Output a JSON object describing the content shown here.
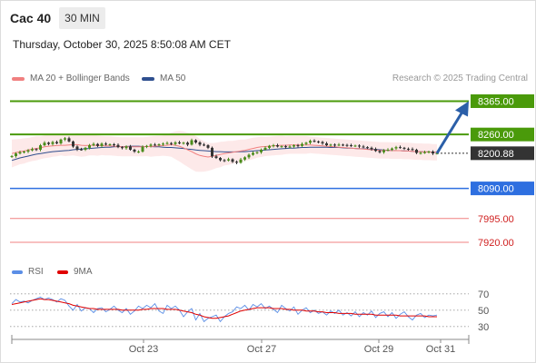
{
  "header": {
    "instrument": "Cac 40",
    "timeframe": "30 MIN",
    "datetime": "Thursday, October 30, 2025 8:50:08 AM CET"
  },
  "legend": {
    "ma20": "MA 20 + Bollinger Bands",
    "ma50": "MA 50",
    "credit": "Research © 2025 Trading Central",
    "colors": {
      "ma20": "#f08080",
      "ma50": "#2f4f8f"
    }
  },
  "rsi_legend": {
    "rsi": "RSI",
    "ma9": "9MA",
    "colors": {
      "rsi": "#5b8ee6",
      "ma9": "#e00000"
    }
  },
  "chart_data": [
    {
      "type": "candlestick",
      "title": "",
      "ylim": [
        7880,
        8395
      ],
      "x_ticks": [
        "Oct 23",
        "Oct 27",
        "Oct 29",
        "Oct 31"
      ],
      "last_price": 8200.88,
      "levels": [
        {
          "label": "8365.00",
          "value": 8365,
          "color": "#4a9a0a",
          "style": "solid-thick"
        },
        {
          "label": "8260.00",
          "value": 8260,
          "color": "#4a9a0a",
          "style": "solid-thick"
        },
        {
          "label": "8200.88",
          "value": 8200.88,
          "color": "#333333",
          "style": "dotted"
        },
        {
          "label": "8090.00",
          "value": 8090,
          "color": "#2e6fe0",
          "style": "solid"
        },
        {
          "label": "7995.00",
          "value": 7995,
          "color": "#f08080",
          "style": "solid-thin"
        },
        {
          "label": "7920.00",
          "value": 7920,
          "color": "#f08080",
          "style": "solid-thin"
        }
      ],
      "close": [
        8192,
        8200,
        8204,
        8206,
        8210,
        8214,
        8212,
        8226,
        8234,
        8230,
        8236,
        8232,
        8244,
        8248,
        8238,
        8222,
        8213,
        8212,
        8218,
        8226,
        8230,
        8224,
        8231,
        8228,
        8229,
        8227,
        8220,
        8217,
        8222,
        8212,
        8206,
        8206,
        8221,
        8224,
        8228,
        8227,
        8229,
        8231,
        8233,
        8230,
        8235,
        8232,
        8234,
        8228,
        8242,
        8235,
        8228,
        8226,
        8218,
        8191,
        8186,
        8179,
        8178,
        8182,
        8174,
        8171,
        8181,
        8188,
        8196,
        8202,
        8204,
        8212,
        8218,
        8224,
        8226,
        8222,
        8223,
        8220,
        8222,
        8226,
        8224,
        8230,
        8234,
        8240,
        8238,
        8236,
        8232,
        8226,
        8228,
        8226,
        8228,
        8227,
        8226,
        8224,
        8225,
        8222,
        8220,
        8218,
        8214,
        8208,
        8204,
        8210,
        8212,
        8216,
        8220,
        8218,
        8215,
        8214,
        8212,
        8202,
        8202,
        8204,
        8206,
        8200,
        8201
      ],
      "ma20": [
        8200,
        8203,
        8206,
        8208,
        8211,
        8214,
        8216,
        8218,
        8221,
        8223,
        8224,
        8225,
        8226,
        8226,
        8227,
        8228,
        8228,
        8226,
        8225,
        8226,
        8226,
        8225,
        8225,
        8224,
        8224,
        8223,
        8222,
        8221,
        8221,
        8221,
        8221,
        8221,
        8221,
        8222,
        8222,
        8223,
        8224,
        8225,
        8226,
        8228,
        8226,
        8223,
        8218,
        8212,
        8206,
        8199,
        8194,
        8191,
        8189,
        8191,
        8194,
        8197,
        8200,
        8202,
        8204,
        8206,
        8208,
        8210,
        8213,
        8216,
        8219,
        8221,
        8222,
        8223,
        8224,
        8225,
        8226,
        8226,
        8227,
        8227,
        8227,
        8227,
        8227,
        8227,
        8226,
        8225,
        8224,
        8223,
        8222,
        8221,
        8220,
        8219,
        8218,
        8217,
        8216,
        8215,
        8214,
        8213,
        8212,
        8211,
        8210,
        8210,
        8210,
        8209,
        8209,
        8209,
        8208,
        8208,
        8207,
        8206,
        8206,
        8205,
        8205,
        8204,
        8204
      ],
      "ma50": [
        8178,
        8182,
        8186,
        8189,
        8192,
        8195,
        8198,
        8200,
        8202,
        8204,
        8206,
        8207,
        8208,
        8209,
        8210,
        8212,
        8213,
        8214,
        8215,
        8216,
        8217,
        8218,
        8219,
        8220,
        8220,
        8221,
        8222,
        8222,
        8222,
        8223,
        8223,
        8223,
        8222,
        8222,
        8222,
        8221,
        8221,
        8220,
        8219,
        8219,
        8218,
        8217,
        8216,
        8214,
        8213,
        8211,
        8210,
        8209,
        8208,
        8207,
        8206,
        8206,
        8205,
        8205,
        8205,
        8205,
        8206,
        8206,
        8207,
        8208,
        8209,
        8210,
        8211,
        8212,
        8213,
        8214,
        8215,
        8216,
        8217,
        8217,
        8218,
        8219,
        8219,
        8220,
        8220,
        8220,
        8220,
        8220,
        8219,
        8219,
        8219,
        8218,
        8217,
        8217,
        8216,
        8215,
        8215,
        8214,
        8213,
        8213,
        8212,
        8211,
        8210,
        8210,
        8209,
        8209,
        8208,
        8208,
        8207,
        8206,
        8206,
        8205,
        8205,
        8204,
        8204
      ],
      "bb_width": [
        44,
        42,
        40,
        40,
        38,
        38,
        38,
        36,
        36,
        36,
        34,
        34,
        32,
        34,
        34,
        34,
        36,
        36,
        34,
        32,
        32,
        32,
        30,
        30,
        30,
        30,
        30,
        30,
        30,
        30,
        30,
        30,
        30,
        30,
        32,
        32,
        32,
        32,
        34,
        38,
        44,
        48,
        52,
        54,
        56,
        56,
        52,
        48,
        44,
        42,
        40,
        40,
        38,
        38,
        36,
        36,
        36,
        34,
        34,
        34,
        32,
        32,
        30,
        30,
        30,
        30,
        30,
        28,
        28,
        28,
        28,
        28,
        28,
        26,
        26,
        26,
        26,
        26,
        26,
        26,
        26,
        26,
        26,
        26,
        26,
        26,
        26,
        26,
        26,
        26,
        26,
        26,
        26,
        26,
        26,
        26,
        26,
        26,
        26,
        26,
        26,
        26,
        26,
        26,
        26
      ]
    },
    {
      "type": "line",
      "title": "RSI",
      "ylim": [
        22,
        82
      ],
      "y_ticks": [
        70,
        50,
        30
      ],
      "series": [
        {
          "name": "RSI",
          "color": "#5b8ee6",
          "values": [
            58,
            63,
            60,
            61,
            59,
            62,
            64,
            66,
            63,
            65,
            63,
            60,
            64,
            62,
            55,
            50,
            57,
            49,
            53,
            52,
            47,
            52,
            53,
            48,
            51,
            55,
            50,
            47,
            52,
            45,
            49,
            55,
            52,
            56,
            53,
            58,
            49,
            46,
            56,
            52,
            55,
            50,
            42,
            48,
            52,
            38,
            46,
            36,
            40,
            42,
            44,
            36,
            42,
            46,
            48,
            54,
            52,
            56,
            50,
            57,
            54,
            58,
            52,
            55,
            51,
            47,
            56,
            52,
            49,
            54,
            45,
            50,
            53,
            47,
            50,
            46,
            48,
            44,
            49,
            46,
            50,
            44,
            47,
            43,
            48,
            42,
            47,
            44,
            49,
            41,
            46,
            48,
            42,
            47,
            40,
            45,
            48,
            42,
            38,
            44,
            46,
            41,
            44,
            43,
            44
          ]
        },
        {
          "name": "9MA",
          "color": "#e00000",
          "values": [
            57,
            58,
            59,
            60,
            61,
            62,
            63,
            64,
            63,
            63,
            62,
            61,
            60,
            59,
            58,
            56,
            55,
            54,
            53,
            52,
            52,
            51,
            51,
            51,
            51,
            51,
            51,
            50,
            50,
            50,
            50,
            50,
            51,
            51,
            52,
            52,
            52,
            52,
            51,
            51,
            51,
            50,
            49,
            48,
            47,
            45,
            44,
            42,
            41,
            40,
            40,
            41,
            42,
            43,
            45,
            47,
            49,
            50,
            51,
            52,
            53,
            53,
            53,
            53,
            52,
            52,
            52,
            51,
            51,
            50,
            50,
            50,
            49,
            49,
            49,
            48,
            48,
            47,
            47,
            47,
            46,
            46,
            46,
            46,
            45,
            45,
            45,
            45,
            45,
            44,
            44,
            44,
            44,
            44,
            44,
            43,
            43,
            43,
            43,
            43,
            43,
            43,
            42,
            42,
            42
          ]
        }
      ]
    }
  ]
}
